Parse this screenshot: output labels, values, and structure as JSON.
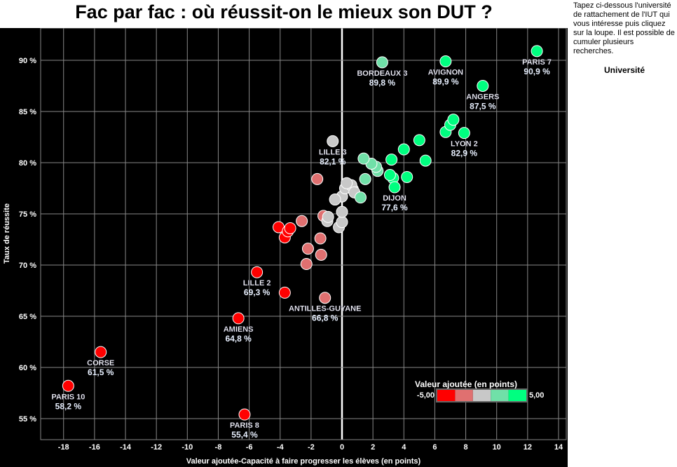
{
  "chart_data": {
    "type": "scatter",
    "title": "Fac par fac : où réussit-on le mieux son DUT ?",
    "xlabel": "Valeur ajoutée-Capacité à faire progresser les élèves  (en points)",
    "ylabel": "Taux de réussite",
    "xlim": [
      -19.5,
      14.5
    ],
    "ylim": [
      53.9,
      94.1
    ],
    "xticks": [
      "-18",
      "-16",
      "-14",
      "-12",
      "-10",
      "-8",
      "-6",
      "-4",
      "-2",
      "0",
      "2",
      "4",
      "6",
      "8",
      "10",
      "12",
      "14"
    ],
    "yticks": [
      "55 %",
      "60 %",
      "65 %",
      "70 %",
      "75 %",
      "80 %",
      "85 %",
      "90 %"
    ],
    "grid": true,
    "legend": {
      "title": "Valeur ajoutée (en points)",
      "min_label": "-5,00",
      "max_label": "5,00",
      "colors": [
        "#ff0000",
        "#e07070",
        "#c8c8c8",
        "#70e0a8",
        "#00ff80"
      ],
      "placement": "bottom-right"
    },
    "points": [
      {
        "x": 12.6,
        "y": 90.9,
        "name": "PARIS 7",
        "value": "90,9 %"
      },
      {
        "x": 6.7,
        "y": 89.9,
        "name": "AVIGNON",
        "value": "89,9 %"
      },
      {
        "x": 2.6,
        "y": 89.8,
        "name": "BORDEAUX 3",
        "value": "89,8 %"
      },
      {
        "x": 9.1,
        "y": 87.5,
        "name": "ANGERS",
        "value": "87,5 %"
      },
      {
        "x": 7.9,
        "y": 82.9,
        "name": "LYON 2",
        "value": "82,9 %"
      },
      {
        "x": -0.6,
        "y": 82.1,
        "name": "LILLE 3",
        "value": "82,1 %"
      },
      {
        "x": 3.4,
        "y": 77.6,
        "name": "DIJON",
        "value": "77,6 %"
      },
      {
        "x": -5.5,
        "y": 69.3,
        "name": "LILLE 2",
        "value": "69,3 %"
      },
      {
        "x": -1.1,
        "y": 66.8,
        "name": "ANTILLES-GUYANE",
        "value": "66,8 %"
      },
      {
        "x": -6.7,
        "y": 64.8,
        "name": "AMIENS",
        "value": "64,8 %"
      },
      {
        "x": -15.6,
        "y": 61.5,
        "name": "CORSE",
        "value": "61,5 %"
      },
      {
        "x": -17.7,
        "y": 58.2,
        "name": "PARIS 10",
        "value": "58,2 %"
      },
      {
        "x": -6.3,
        "y": 55.4,
        "name": "PARIS 8",
        "value": "55,4 %"
      },
      {
        "x": 7.2,
        "y": 84.2
      },
      {
        "x": 7.0,
        "y": 83.7
      },
      {
        "x": 6.7,
        "y": 83.0
      },
      {
        "x": 5.0,
        "y": 82.2
      },
      {
        "x": 4.0,
        "y": 81.3
      },
      {
        "x": 1.4,
        "y": 80.4
      },
      {
        "x": 3.2,
        "y": 80.3
      },
      {
        "x": 5.4,
        "y": 80.2
      },
      {
        "x": 1.9,
        "y": 79.9
      },
      {
        "x": 2.2,
        "y": 79.6
      },
      {
        "x": 2.3,
        "y": 79.2
      },
      {
        "x": 3.1,
        "y": 78.8
      },
      {
        "x": 3.3,
        "y": 78.5
      },
      {
        "x": 4.2,
        "y": 78.6
      },
      {
        "x": 1.5,
        "y": 78.4
      },
      {
        "x": 1.2,
        "y": 76.6
      },
      {
        "x": 0.8,
        "y": 77.1
      },
      {
        "x": 0.3,
        "y": 78.0
      },
      {
        "x": 0.6,
        "y": 77.8
      },
      {
        "x": 0.2,
        "y": 77.5
      },
      {
        "x": 0.7,
        "y": 77.4
      },
      {
        "x": -0.45,
        "y": 76.4
      },
      {
        "x": 0.0,
        "y": 76.7
      },
      {
        "x": 0.0,
        "y": 75.2
      },
      {
        "x": -0.9,
        "y": 74.7
      },
      {
        "x": -0.95,
        "y": 74.3
      },
      {
        "x": 0.0,
        "y": 74.2
      },
      {
        "x": -0.2,
        "y": 73.7
      },
      {
        "x": -1.6,
        "y": 78.4
      },
      {
        "x": -1.2,
        "y": 74.8
      },
      {
        "x": -2.6,
        "y": 74.3
      },
      {
        "x": -3.35,
        "y": 73.6
      },
      {
        "x": -3.5,
        "y": 73.3
      },
      {
        "x": -4.1,
        "y": 73.7
      },
      {
        "x": -3.7,
        "y": 72.7
      },
      {
        "x": -1.4,
        "y": 72.6
      },
      {
        "x": -2.2,
        "y": 71.6
      },
      {
        "x": -1.35,
        "y": 71.0
      },
      {
        "x": -2.3,
        "y": 70.1
      },
      {
        "x": -3.7,
        "y": 67.3
      }
    ]
  },
  "side": {
    "instructions": "Tapez ci-dessous l'université de rattachement de l'IUT qui vous intéresse puis cliquez sur la loupe. Il est possible de cumuler plusieurs recherches.",
    "filter_label": "Université"
  }
}
